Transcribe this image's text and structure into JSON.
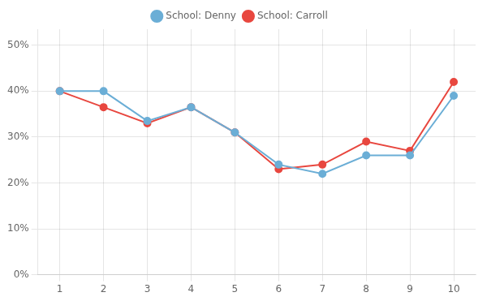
{
  "chart_data": {
    "type": "line",
    "x": [
      1,
      2,
      3,
      4,
      5,
      6,
      7,
      8,
      9,
      10
    ],
    "series": [
      {
        "name": "School: Denny",
        "color": "#6BAED6",
        "marker": "circle",
        "values": [
          0.4,
          0.4,
          0.335,
          0.365,
          0.31,
          0.24,
          0.22,
          0.26,
          0.26,
          0.39
        ]
      },
      {
        "name": "School: Carroll",
        "color": "#E8473F",
        "marker": "circle",
        "values": [
          0.4,
          0.365,
          0.33,
          0.365,
          0.31,
          0.23,
          0.24,
          0.29,
          0.27,
          0.42
        ]
      }
    ],
    "xlim": [
      0.5,
      10.5
    ],
    "xticks": [
      1,
      2,
      3,
      4,
      5,
      6,
      7,
      8,
      9,
      10
    ],
    "ylim": [
      0,
      0.535
    ],
    "yticks": [
      {
        "value": 0.0,
        "label": "0%"
      },
      {
        "value": 0.1,
        "label": "10%"
      },
      {
        "value": 0.2,
        "label": "20%"
      },
      {
        "value": 0.3,
        "label": "30%"
      },
      {
        "value": 0.4,
        "label": "40%"
      },
      {
        "value": 0.5,
        "label": "50%"
      }
    ],
    "grid": true,
    "legend": "top"
  }
}
